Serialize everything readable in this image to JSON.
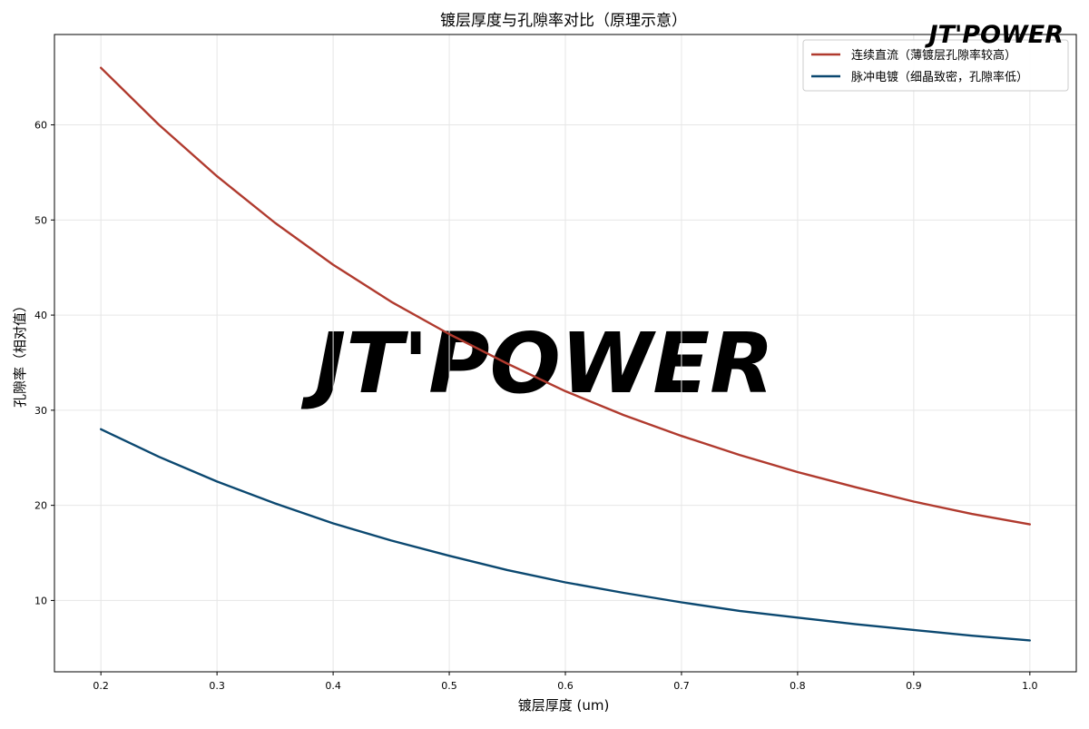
{
  "brand": {
    "logo_text": "JT'POWER",
    "logo_color": "#1f4fa0",
    "watermark_text": "JT'POWER",
    "watermark_color": "#e9eef6"
  },
  "chart_data": {
    "type": "line",
    "title": "镀层厚度与孔隙率对比（原理示意）",
    "xlabel": "镀层厚度 (um)",
    "ylabel": "孔隙率（相对值）",
    "xlim": [
      0.16,
      1.04
    ],
    "ylim": [
      2.5,
      69.5
    ],
    "xticks": [
      0.2,
      0.3,
      0.4,
      0.5,
      0.6,
      0.7,
      0.8,
      0.9,
      1.0
    ],
    "xtick_labels": [
      "0.2",
      "0.3",
      "0.4",
      "0.5",
      "0.6",
      "0.7",
      "0.8",
      "0.9",
      "1.0"
    ],
    "yticks": [
      10,
      20,
      30,
      40,
      50,
      60
    ],
    "ytick_labels": [
      "10",
      "20",
      "30",
      "40",
      "50",
      "60"
    ],
    "grid": true,
    "legend_position": "top-right",
    "x": [
      0.2,
      0.25,
      0.3,
      0.35,
      0.4,
      0.45,
      0.5,
      0.55,
      0.6,
      0.65,
      0.7,
      0.75,
      0.8,
      0.85,
      0.9,
      0.95,
      1.0
    ],
    "series": [
      {
        "name": "连续直流（薄镀层孔隙率较高）",
        "color": "#b03a2e",
        "values": [
          66.0,
          60.0,
          54.6,
          49.7,
          45.3,
          41.4,
          38.0,
          34.9,
          32.0,
          29.5,
          27.3,
          25.3,
          23.5,
          21.9,
          20.4,
          19.1,
          18.0
        ]
      },
      {
        "name": "脉冲电镀（细晶致密，孔隙率低）",
        "color": "#0b4870",
        "values": [
          28.0,
          25.1,
          22.5,
          20.2,
          18.1,
          16.3,
          14.7,
          13.2,
          11.9,
          10.8,
          9.8,
          8.9,
          8.2,
          7.5,
          6.9,
          6.3,
          5.8
        ]
      }
    ]
  }
}
